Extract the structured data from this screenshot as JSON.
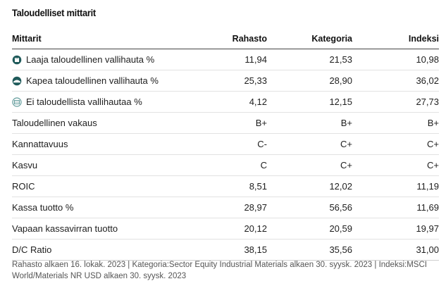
{
  "section": {
    "title": "Taloudelliset mittarit"
  },
  "table": {
    "headers": [
      "Mittarit",
      "Rahasto",
      "Kategoria",
      "Indeksi"
    ],
    "rows": [
      {
        "label": "Laaja taloudellinen vallihauta %",
        "icon": "wide-moat-icon",
        "values": [
          "11,94",
          "21,53",
          "10,98"
        ]
      },
      {
        "label": "Kapea taloudellinen vallihauta %",
        "icon": "narrow-moat-icon",
        "values": [
          "25,33",
          "28,90",
          "36,02"
        ]
      },
      {
        "label": "Ei taloudellista vallihautaa %",
        "icon": "no-moat-icon",
        "values": [
          "4,12",
          "12,15",
          "27,73"
        ]
      },
      {
        "label": "Taloudellinen vakaus",
        "values": [
          "B+",
          "B+",
          "B+"
        ]
      },
      {
        "label": "Kannattavuus",
        "values": [
          "C-",
          "C+",
          "C+"
        ]
      },
      {
        "label": "Kasvu",
        "values": [
          "C",
          "C+",
          "C+"
        ]
      },
      {
        "label": "ROIC",
        "values": [
          "8,51",
          "12,02",
          "11,19"
        ]
      },
      {
        "label": "Kassa tuotto %",
        "values": [
          "28,97",
          "56,56",
          "11,69"
        ]
      },
      {
        "label": "Vapaan kassavirran tuotto",
        "values": [
          "20,12",
          "20,59",
          "19,97"
        ]
      },
      {
        "label": "D/C Ratio",
        "values": [
          "38,15",
          "35,56",
          "31,00"
        ]
      }
    ]
  },
  "footer": {
    "note": "Rahasto alkaen 16. lokak. 2023 | Kategoria:Sector Equity Industrial Materials alkaen 30. syysk. 2023 | Indeksi:MSCI World/Materials NR USD alkaen 30. syysk. 2023"
  },
  "colors": {
    "moat_dark": "#1f5a5a",
    "moat_light": "#5f9a9a"
  }
}
